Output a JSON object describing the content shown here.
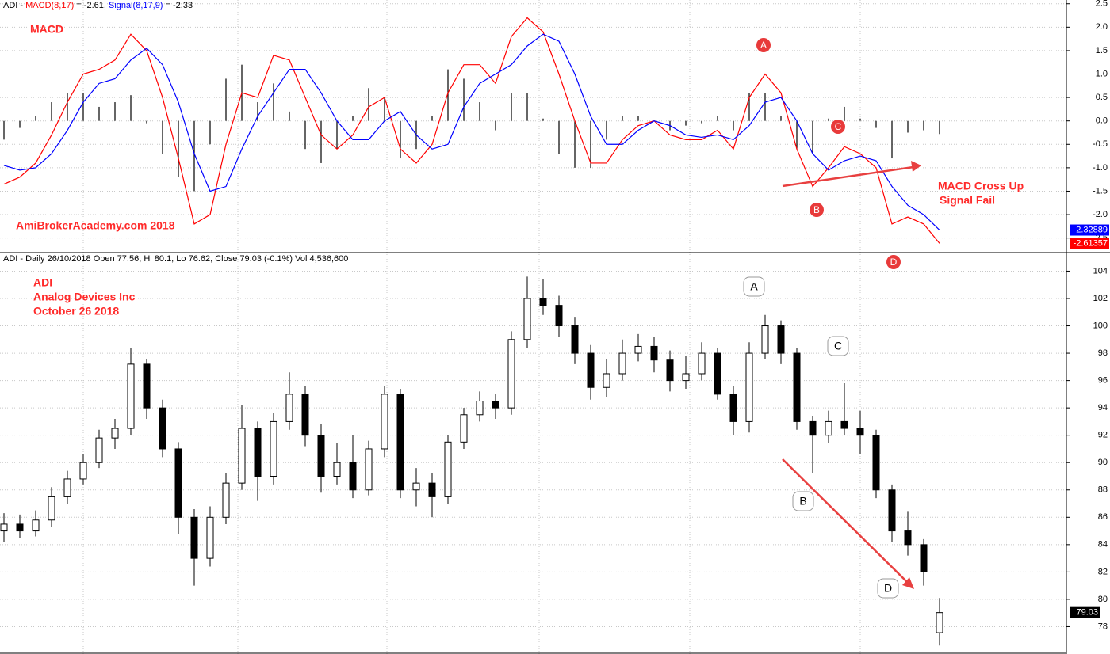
{
  "chart_data": [
    {
      "type": "line",
      "header": "ADI - ",
      "readouts": [
        " = -2.61, ",
        " = -2.33"
      ],
      "annotations": [
        "MACD",
        "AmiBrokerAcademy.com  2018",
        "MACD Cross Up",
        "Signal Fail"
      ],
      "markers": [
        "A",
        "B",
        "C",
        "D"
      ],
      "ylim": [
        -2.81,
        2.58
      ],
      "yticks": [
        2.5,
        {
          "value": 2,
          "label": "2.0"
        },
        1.5,
        {
          "value": 1,
          "label": "1.0"
        },
        0.5,
        {
          "value": 0,
          "label": "0.0"
        },
        -0.5,
        {
          "value": -1,
          "label": "-1.0"
        },
        -1.5,
        {
          "value": -2,
          "label": "-2.0"
        },
        -2.5
      ],
      "grid": true,
      "series": [
        {
          "name": "MACD(8,17)",
          "color": "#ff0000",
          "end_label": "-2.61357",
          "values": [
            -1.35,
            -1.2,
            -0.9,
            -0.3,
            0.4,
            1.0,
            1.1,
            1.3,
            1.85,
            1.5,
            0.5,
            -0.8,
            -2.2,
            -2.0,
            -0.5,
            0.6,
            0.5,
            1.4,
            1.3,
            0.5,
            -0.3,
            -0.6,
            -0.3,
            0.3,
            0.5,
            -0.6,
            -0.9,
            -0.5,
            0.6,
            1.2,
            1.2,
            0.8,
            1.8,
            2.2,
            1.9,
            1.0,
            0.0,
            -0.9,
            -0.9,
            -0.4,
            -0.1,
            0.0,
            -0.3,
            -0.4,
            -0.4,
            -0.2,
            -0.6,
            0.5,
            1.0,
            0.6,
            -0.6,
            -1.4,
            -1.0,
            -0.55,
            -0.7,
            -1.0,
            -2.2,
            -2.05,
            -2.2,
            -2.61357
          ]
        },
        {
          "name": "Signal(8,17,9)",
          "color": "#0000ff",
          "end_label": "-2.32889",
          "values": [
            -0.95,
            -1.05,
            -1.0,
            -0.7,
            -0.2,
            0.4,
            0.8,
            0.9,
            1.3,
            1.55,
            1.2,
            0.4,
            -0.7,
            -1.5,
            -1.4,
            -0.6,
            0.1,
            0.6,
            1.1,
            1.1,
            0.6,
            0.0,
            -0.4,
            -0.4,
            0.0,
            0.2,
            -0.3,
            -0.6,
            -0.5,
            0.3,
            0.8,
            1.0,
            1.2,
            1.6,
            1.85,
            1.7,
            1.0,
            0.1,
            -0.5,
            -0.5,
            -0.2,
            0.0,
            -0.1,
            -0.3,
            -0.35,
            -0.3,
            -0.4,
            -0.1,
            0.4,
            0.5,
            0.0,
            -0.7,
            -1.05,
            -0.85,
            -0.75,
            -0.85,
            -1.4,
            -1.8,
            -2.0,
            -2.32889
          ]
        }
      ],
      "histogram": {
        "color": "#000000",
        "values": [
          -0.4,
          -0.15,
          0.1,
          0.4,
          0.6,
          0.6,
          0.3,
          0.4,
          0.55,
          -0.05,
          -0.7,
          -1.2,
          -1.5,
          -0.5,
          0.9,
          1.2,
          0.4,
          0.8,
          0.2,
          -0.6,
          -0.9,
          -0.6,
          0.1,
          0.7,
          0.5,
          -0.8,
          -0.6,
          0.1,
          1.1,
          0.9,
          0.4,
          -0.2,
          0.6,
          0.6,
          0.05,
          -0.7,
          -1.0,
          -1.0,
          -0.4,
          0.1,
          0.1,
          0.0,
          -0.2,
          -0.1,
          -0.05,
          0.1,
          -0.2,
          0.6,
          0.6,
          0.1,
          -0.6,
          -0.7,
          0.05,
          0.3,
          0.05,
          -0.15,
          -0.8,
          -0.25,
          -0.2,
          -0.28
        ]
      }
    },
    {
      "type": "candlestick",
      "header": "ADI - Daily 26/10/2018 Open 77.56, Hi 80.1, Lo 76.62, Close 79.03 (-0.1%) Vol 4,536,600",
      "annotations": [
        "ADI",
        "Analog Devices Inc",
        "October 26 2018"
      ],
      "markers": [
        "A",
        "B",
        "C",
        "D"
      ],
      "ylim": [
        76.0,
        105.3
      ],
      "yticks": [
        78,
        80,
        82,
        84,
        86,
        88,
        90,
        92,
        94,
        96,
        98,
        100,
        102,
        104
      ],
      "grid": true,
      "up_color": "#ffffff",
      "down_color": "#000000",
      "open": [
        85,
        85.5,
        85,
        85.8,
        87.5,
        88.8,
        90,
        91.8,
        92.5,
        97.2,
        94,
        91,
        86,
        83,
        86,
        88.5,
        92.5,
        89,
        93,
        95,
        92,
        89,
        90,
        88,
        91,
        95,
        88,
        88.5,
        87.5,
        91.5,
        93.5,
        94.5,
        94,
        99,
        102,
        101.5,
        100,
        98,
        95.5,
        96.5,
        98,
        98.5,
        97.5,
        96,
        96.5,
        98,
        95,
        93,
        98,
        100,
        98,
        93,
        92,
        93,
        92.5,
        92,
        88,
        85,
        84,
        77.56
      ],
      "high": [
        86.3,
        86.2,
        86.5,
        88.2,
        89.4,
        90.6,
        92.4,
        93.2,
        98.4,
        97.6,
        94.6,
        91.5,
        86.6,
        86.8,
        89.2,
        94.2,
        93,
        93.6,
        96.6,
        95.6,
        92.8,
        91.4,
        92,
        91.6,
        95.6,
        95.4,
        89.6,
        89.2,
        92,
        94,
        95.2,
        95,
        99.6,
        103.6,
        103.4,
        102.2,
        100.6,
        98.6,
        97.6,
        99,
        99.4,
        99.2,
        98.2,
        97.8,
        98.8,
        98.4,
        95.6,
        98.8,
        100.8,
        100.4,
        98.4,
        93.4,
        93.8,
        95.8,
        93.8,
        92.4,
        88.4,
        86.4,
        84.4,
        80.1
      ],
      "low": [
        84.2,
        84.5,
        84.6,
        85.3,
        87,
        88.4,
        89.6,
        91,
        92,
        93.2,
        90.4,
        84.8,
        81,
        82.4,
        85.5,
        88,
        87.2,
        88.4,
        92.4,
        91.2,
        87.8,
        88.4,
        87.4,
        87.6,
        90.4,
        87.4,
        86.8,
        86,
        87,
        91,
        93,
        93.2,
        93.5,
        98.4,
        100.8,
        99.2,
        97.2,
        94.6,
        94.8,
        96,
        97.4,
        96.6,
        95.2,
        95.4,
        96,
        94.6,
        92,
        92.2,
        97.6,
        97.2,
        92.4,
        89.2,
        91.4,
        92,
        90.6,
        87.4,
        84.2,
        83.2,
        81,
        76.62
      ],
      "close": [
        85.5,
        85,
        85.8,
        87.5,
        88.8,
        90,
        91.8,
        92.5,
        97.2,
        94,
        91,
        86,
        83,
        86,
        88.5,
        92.5,
        89,
        93,
        95,
        92,
        89,
        90,
        88,
        91,
        95,
        88,
        88.5,
        87.5,
        91.5,
        93.5,
        94.5,
        94,
        99,
        102,
        101.5,
        100,
        98,
        95.5,
        96.5,
        98,
        98.5,
        97.5,
        96,
        96.5,
        98,
        95,
        93,
        98,
        100,
        98,
        93,
        92,
        93,
        92.5,
        92,
        88,
        85,
        84,
        82,
        79.03
      ]
    }
  ]
}
